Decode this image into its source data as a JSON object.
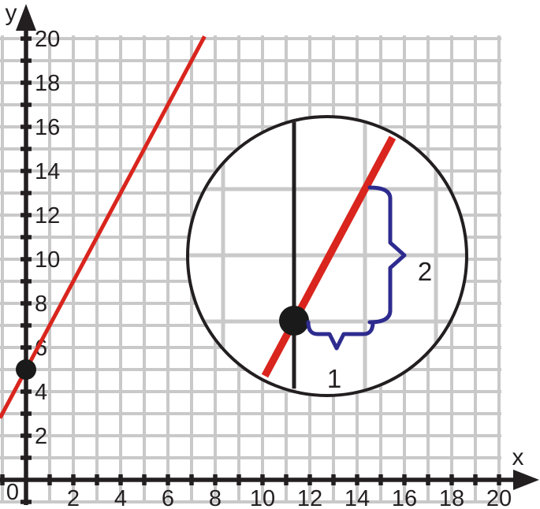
{
  "colors": {
    "background": "#ffffff",
    "grid": "#c9c9c9",
    "axis": "#231f20",
    "text": "#231f20",
    "line": "#d9251d",
    "point": "#1a1a1a",
    "brace": "#2e2b8f",
    "magnifier_fill": "#ffffff",
    "magnifier_outline": "#231f20"
  },
  "chart_data": {
    "type": "line",
    "title": "",
    "xlabel": "x",
    "ylabel": "y",
    "origin_label": "0",
    "xlim": [
      0,
      20
    ],
    "ylim": [
      0,
      20
    ],
    "grid": true,
    "grid_step": 1,
    "tick_step": 1,
    "label_step": 2,
    "x_tick_labels": [
      "2",
      "4",
      "6",
      "8",
      "10",
      "12",
      "14",
      "16",
      "18",
      "20"
    ],
    "y_tick_labels": [
      "2",
      "4",
      "6",
      "8",
      "10",
      "12",
      "14",
      "16",
      "18",
      "20"
    ],
    "legend": "none",
    "series": [
      {
        "name": "red-line",
        "slope": 2,
        "y_intercept": 5,
        "color": "#d9251d",
        "x_draw_range": [
          -1.1,
          7.55
        ]
      }
    ],
    "marked_points": [
      {
        "x": 0,
        "y": 5
      }
    ],
    "magnifier_inset": {
      "magnifies_point": {
        "x": 0,
        "y": 5
      },
      "run": 1,
      "run_label": "1",
      "rise": 2,
      "rise_label": "2"
    }
  }
}
